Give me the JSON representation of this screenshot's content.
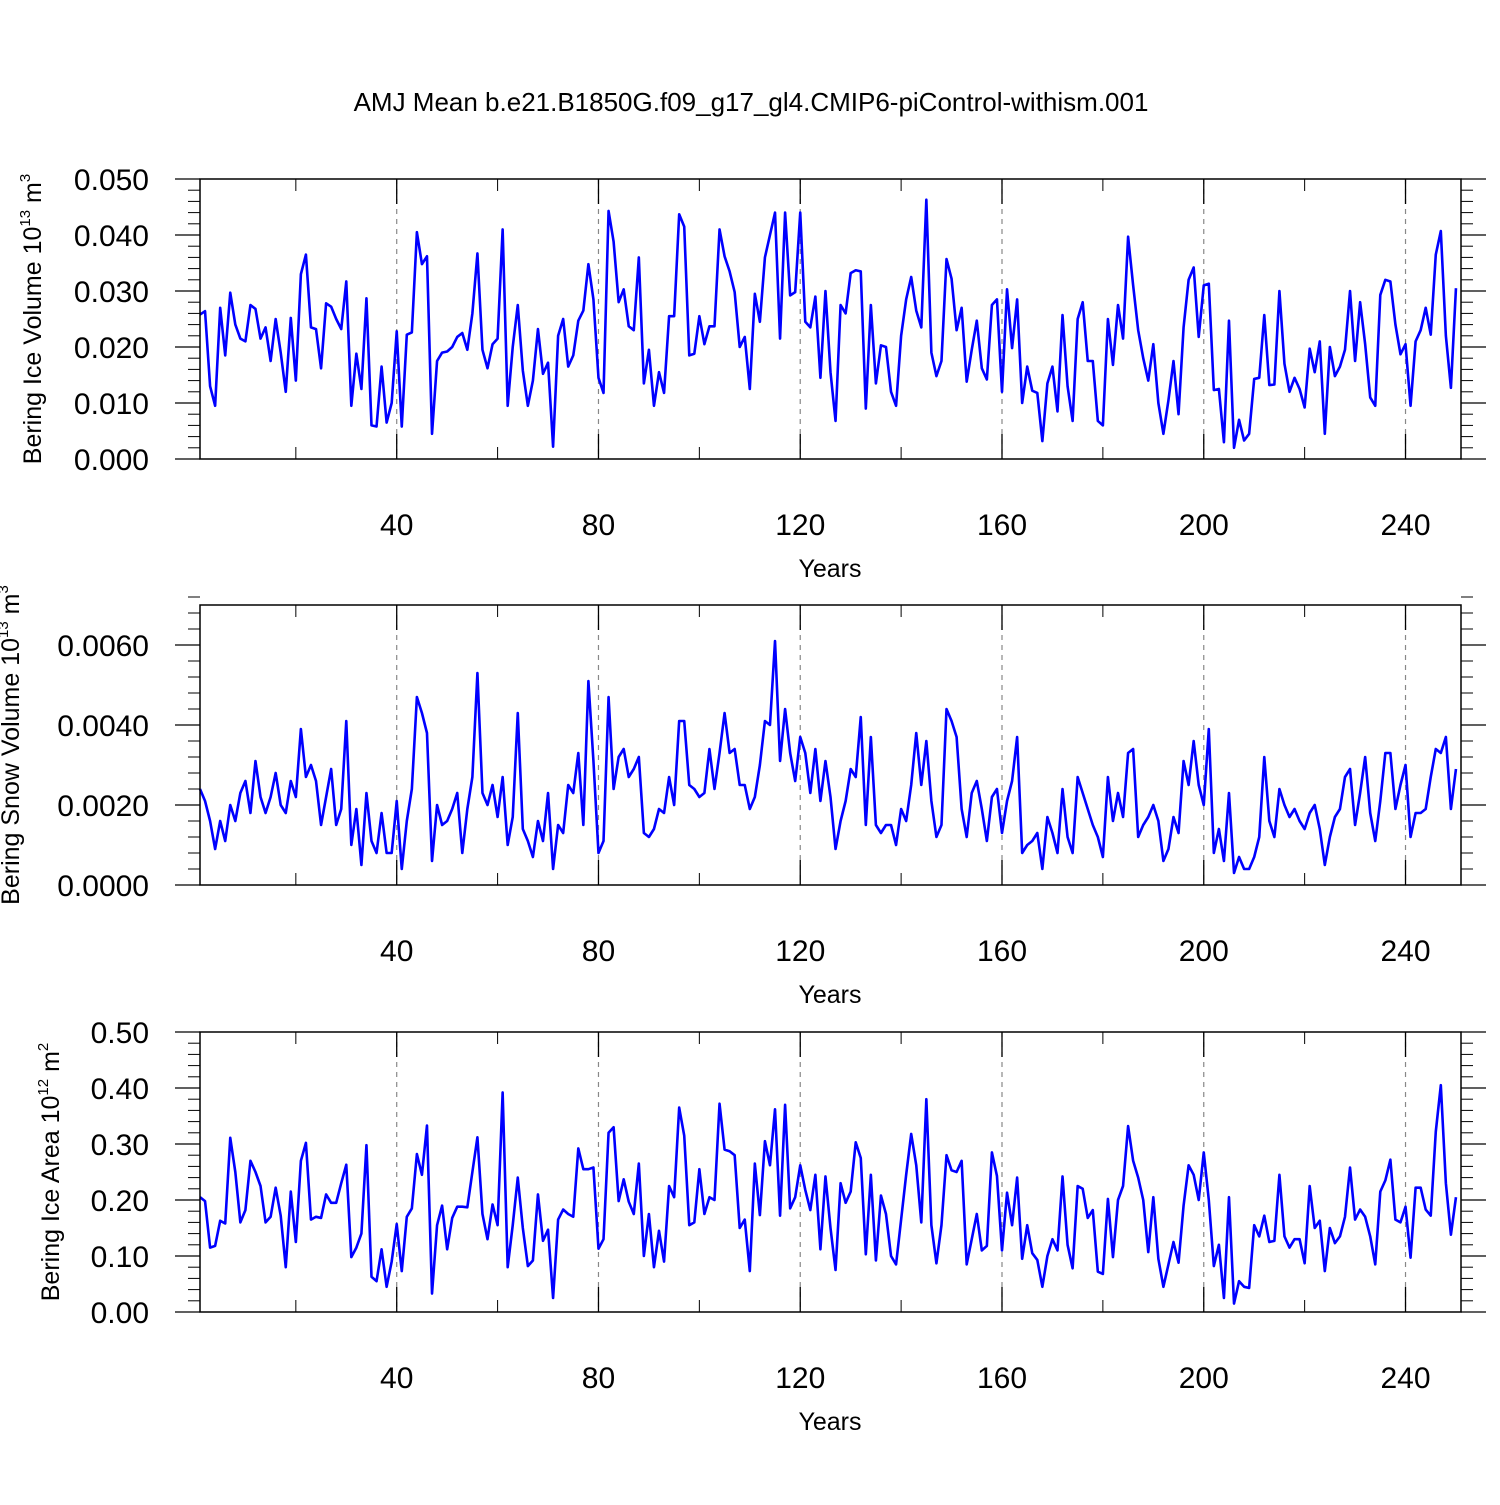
{
  "title": "AMJ Mean b.e21.B1850G.f09_g17_gl4.CMIP6-piControl-withism.001",
  "colors": {
    "line": "#0000ff",
    "axis": "#000000",
    "grid": "#888888"
  },
  "chart_data": [
    {
      "type": "line",
      "ylabel": {
        "text": "Bering Ice Volume 10",
        "sup": "13",
        "unit": " m",
        "unit_sup": "3"
      },
      "xlabel": "Years",
      "xlim": [
        1,
        251
      ],
      "ylim": [
        0,
        0.05
      ],
      "xticks": [
        40,
        80,
        120,
        160,
        200,
        240
      ],
      "xtick_labels": [
        "40",
        "80",
        "120",
        "160",
        "200",
        "240"
      ],
      "yticks": [
        0,
        0.01,
        0.02,
        0.03,
        0.04,
        0.05
      ],
      "ytick_labels": [
        "0.000",
        "0.010",
        "0.020",
        "0.030",
        "0.040",
        "0.050"
      ],
      "ystep_minor": 0.002,
      "grid": "vertical dashed at major x ticks",
      "series": [
        {
          "name": "Bering Ice Volume",
          "x_start": 1,
          "x_step": 1,
          "values": [
            0.0258,
            0.0264,
            0.013,
            0.0095,
            0.027,
            0.0185,
            0.0297,
            0.024,
            0.0215,
            0.021,
            0.0275,
            0.0268,
            0.0215,
            0.0235,
            0.0175,
            0.025,
            0.019,
            0.012,
            0.0252,
            0.014,
            0.033,
            0.0365,
            0.0235,
            0.0232,
            0.0162,
            0.0278,
            0.0272,
            0.025,
            0.0232,
            0.0317,
            0.0095,
            0.0188,
            0.0125,
            0.0287,
            0.006,
            0.0058,
            0.0165,
            0.0065,
            0.01,
            0.0228,
            0.0058,
            0.0222,
            0.0226,
            0.0405,
            0.0348,
            0.0362,
            0.0045,
            0.0175,
            0.019,
            0.0192,
            0.02,
            0.0218,
            0.0225,
            0.0195,
            0.026,
            0.0367,
            0.0195,
            0.0162,
            0.0205,
            0.0215,
            0.041,
            0.0095,
            0.02,
            0.0275,
            0.0158,
            0.0095,
            0.014,
            0.0232,
            0.0152,
            0.0172,
            0.0022,
            0.022,
            0.025,
            0.0165,
            0.0185,
            0.0247,
            0.0265,
            0.0348,
            0.0285,
            0.0145,
            0.0118,
            0.0443,
            0.0388,
            0.028,
            0.0303,
            0.0237,
            0.023,
            0.036,
            0.0135,
            0.0195,
            0.0095,
            0.0155,
            0.0118,
            0.0255,
            0.0255,
            0.0437,
            0.0415,
            0.0185,
            0.0188,
            0.0255,
            0.0205,
            0.0237,
            0.0237,
            0.041,
            0.0362,
            0.0335,
            0.0298,
            0.02,
            0.0218,
            0.0125,
            0.0295,
            0.0245,
            0.036,
            0.04,
            0.044,
            0.0215,
            0.044,
            0.0292,
            0.0298,
            0.044,
            0.0245,
            0.0235,
            0.029,
            0.0145,
            0.03,
            0.0155,
            0.0068,
            0.0275,
            0.026,
            0.0332,
            0.0337,
            0.0335,
            0.009,
            0.0275,
            0.0135,
            0.0203,
            0.02,
            0.012,
            0.0095,
            0.022,
            0.0285,
            0.0325,
            0.0265,
            0.0235,
            0.0463,
            0.019,
            0.0148,
            0.0175,
            0.0357,
            0.0322,
            0.023,
            0.027,
            0.0138,
            0.0195,
            0.0247,
            0.0162,
            0.0142,
            0.0275,
            0.0285,
            0.012,
            0.0303,
            0.0198,
            0.0285,
            0.01,
            0.0165,
            0.0122,
            0.0118,
            0.0032,
            0.0135,
            0.0165,
            0.0085,
            0.0257,
            0.013,
            0.0068,
            0.025,
            0.028,
            0.0175,
            0.0175,
            0.0068,
            0.006,
            0.025,
            0.0168,
            0.0275,
            0.0215,
            0.0397,
            0.031,
            0.023,
            0.018,
            0.014,
            0.0205,
            0.01,
            0.0045,
            0.0105,
            0.0175,
            0.008,
            0.0235,
            0.032,
            0.0342,
            0.0218,
            0.031,
            0.0313,
            0.0123,
            0.0125,
            0.003,
            0.0247,
            0.002,
            0.007,
            0.0033,
            0.0045,
            0.0143,
            0.0145,
            0.0257,
            0.0132,
            0.0133,
            0.03,
            0.017,
            0.012,
            0.0145,
            0.0125,
            0.0092,
            0.0197,
            0.0155,
            0.021,
            0.0045,
            0.02,
            0.0148,
            0.0165,
            0.0195,
            0.03,
            0.0175,
            0.028,
            0.0205,
            0.011,
            0.0095,
            0.0293,
            0.032,
            0.0317,
            0.024,
            0.0187,
            0.0205,
            0.0095,
            0.021,
            0.023,
            0.027,
            0.0222,
            0.0365,
            0.0407,
            0.022,
            0.0127,
            0.0305
          ]
        }
      ]
    },
    {
      "type": "line",
      "ylabel": {
        "text": "Bering Snow Volume 10",
        "sup": "13",
        "unit": " m",
        "unit_sup": "3"
      },
      "xlabel": "Years",
      "xlim": [
        1,
        251
      ],
      "ylim": [
        0,
        0.007
      ],
      "xticks": [
        40,
        80,
        120,
        160,
        200,
        240
      ],
      "xtick_labels": [
        "40",
        "80",
        "120",
        "160",
        "200",
        "240"
      ],
      "yticks": [
        0,
        0.002,
        0.004,
        0.006
      ],
      "ytick_labels": [
        "0.0000",
        "0.0020",
        "0.0040",
        "0.0060"
      ],
      "ystep_minor": 0.0004,
      "grid": "vertical dashed at major x ticks",
      "series": [
        {
          "name": "Bering Snow Volume",
          "x_start": 1,
          "x_step": 1,
          "values": [
            0.0024,
            0.0021,
            0.0016,
            0.0009,
            0.0016,
            0.0011,
            0.002,
            0.0016,
            0.0023,
            0.0026,
            0.0018,
            0.0031,
            0.0022,
            0.0018,
            0.0022,
            0.0028,
            0.002,
            0.0018,
            0.0026,
            0.0022,
            0.0039,
            0.0027,
            0.003,
            0.0026,
            0.0015,
            0.0022,
            0.0029,
            0.0015,
            0.0019,
            0.0041,
            0.001,
            0.0019,
            0.0005,
            0.0023,
            0.0011,
            0.0008,
            0.0018,
            0.0008,
            0.0008,
            0.0021,
            0.0004,
            0.0016,
            0.0024,
            0.0047,
            0.0043,
            0.0038,
            0.0006,
            0.002,
            0.0015,
            0.0016,
            0.0019,
            0.0023,
            0.0008,
            0.0019,
            0.0027,
            0.0053,
            0.0023,
            0.002,
            0.0025,
            0.0017,
            0.0027,
            0.001,
            0.0017,
            0.0043,
            0.0014,
            0.0011,
            0.0007,
            0.0016,
            0.0011,
            0.0023,
            0.0004,
            0.0015,
            0.0013,
            0.0025,
            0.0023,
            0.0033,
            0.0015,
            0.0051,
            0.0031,
            0.0008,
            0.0011,
            0.0047,
            0.0024,
            0.0032,
            0.0034,
            0.0027,
            0.0029,
            0.0032,
            0.0013,
            0.0012,
            0.0014,
            0.0019,
            0.0018,
            0.0027,
            0.002,
            0.0041,
            0.0041,
            0.0025,
            0.0024,
            0.0022,
            0.0023,
            0.0034,
            0.0024,
            0.0033,
            0.0043,
            0.0033,
            0.0034,
            0.0025,
            0.0025,
            0.0019,
            0.0022,
            0.003,
            0.0041,
            0.004,
            0.0061,
            0.0031,
            0.0044,
            0.0033,
            0.0026,
            0.0037,
            0.0033,
            0.0023,
            0.0034,
            0.0021,
            0.0031,
            0.0022,
            0.0009,
            0.0016,
            0.0021,
            0.0029,
            0.0027,
            0.0042,
            0.0015,
            0.0037,
            0.0015,
            0.0013,
            0.0015,
            0.0015,
            0.001,
            0.0019,
            0.0016,
            0.0025,
            0.0038,
            0.0025,
            0.0036,
            0.0021,
            0.0012,
            0.0015,
            0.0044,
            0.0041,
            0.0037,
            0.0019,
            0.0012,
            0.0023,
            0.0026,
            0.0019,
            0.0011,
            0.0022,
            0.0024,
            0.0013,
            0.0021,
            0.0026,
            0.0037,
            0.0008,
            0.001,
            0.0011,
            0.0013,
            0.0004,
            0.0017,
            0.0013,
            0.0008,
            0.0024,
            0.0012,
            0.0008,
            0.0027,
            0.0023,
            0.0019,
            0.0015,
            0.0012,
            0.0007,
            0.0027,
            0.0016,
            0.0023,
            0.0017,
            0.0033,
            0.0034,
            0.0012,
            0.0015,
            0.0017,
            0.002,
            0.0016,
            0.0006,
            0.0009,
            0.0017,
            0.0013,
            0.0031,
            0.0025,
            0.0036,
            0.0025,
            0.002,
            0.0039,
            0.0008,
            0.0014,
            0.0006,
            0.0023,
            0.0003,
            0.0007,
            0.0004,
            0.0004,
            0.0007,
            0.0012,
            0.0032,
            0.0016,
            0.0012,
            0.0024,
            0.002,
            0.0017,
            0.0019,
            0.0016,
            0.0014,
            0.0018,
            0.002,
            0.0014,
            0.0005,
            0.0012,
            0.0017,
            0.0019,
            0.0027,
            0.0029,
            0.0015,
            0.0023,
            0.0032,
            0.0018,
            0.0011,
            0.0021,
            0.0033,
            0.0033,
            0.0019,
            0.0025,
            0.003,
            0.0012,
            0.0018,
            0.0018,
            0.0019,
            0.0027,
            0.0034,
            0.0033,
            0.0037,
            0.0019,
            0.0029
          ]
        }
      ]
    },
    {
      "type": "line",
      "ylabel": {
        "text": "Bering Ice Area 10",
        "sup": "12",
        "unit": " m",
        "unit_sup": "2"
      },
      "xlabel": "Years",
      "xlim": [
        1,
        251
      ],
      "ylim": [
        0,
        0.5
      ],
      "xticks": [
        40,
        80,
        120,
        160,
        200,
        240
      ],
      "xtick_labels": [
        "40",
        "80",
        "120",
        "160",
        "200",
        "240"
      ],
      "yticks": [
        0,
        0.1,
        0.2,
        0.3,
        0.4,
        0.5
      ],
      "ytick_labels": [
        "0.00",
        "0.10",
        "0.20",
        "0.30",
        "0.40",
        "0.50"
      ],
      "ystep_minor": 0.02,
      "grid": "vertical dashed at major x ticks",
      "series": [
        {
          "name": "Bering Ice Area",
          "x_start": 1,
          "x_step": 1,
          "values": [
            0.205,
            0.198,
            0.115,
            0.118,
            0.163,
            0.158,
            0.311,
            0.25,
            0.16,
            0.182,
            0.27,
            0.25,
            0.225,
            0.16,
            0.17,
            0.222,
            0.172,
            0.08,
            0.215,
            0.125,
            0.27,
            0.302,
            0.165,
            0.17,
            0.168,
            0.21,
            0.195,
            0.195,
            0.23,
            0.263,
            0.098,
            0.115,
            0.14,
            0.298,
            0.063,
            0.055,
            0.112,
            0.045,
            0.09,
            0.157,
            0.073,
            0.17,
            0.185,
            0.282,
            0.245,
            0.333,
            0.033,
            0.155,
            0.19,
            0.112,
            0.168,
            0.188,
            0.188,
            0.187,
            0.25,
            0.312,
            0.175,
            0.13,
            0.192,
            0.155,
            0.392,
            0.08,
            0.155,
            0.24,
            0.15,
            0.082,
            0.092,
            0.21,
            0.127,
            0.147,
            0.025,
            0.165,
            0.183,
            0.175,
            0.17,
            0.292,
            0.255,
            0.255,
            0.258,
            0.113,
            0.13,
            0.32,
            0.33,
            0.198,
            0.237,
            0.197,
            0.175,
            0.265,
            0.1,
            0.175,
            0.08,
            0.145,
            0.09,
            0.225,
            0.205,
            0.365,
            0.315,
            0.155,
            0.16,
            0.255,
            0.175,
            0.205,
            0.2,
            0.372,
            0.29,
            0.287,
            0.28,
            0.15,
            0.165,
            0.073,
            0.265,
            0.173,
            0.305,
            0.262,
            0.362,
            0.172,
            0.37,
            0.185,
            0.205,
            0.262,
            0.218,
            0.182,
            0.245,
            0.112,
            0.242,
            0.15,
            0.075,
            0.23,
            0.195,
            0.215,
            0.303,
            0.275,
            0.103,
            0.245,
            0.092,
            0.208,
            0.175,
            0.1,
            0.085,
            0.165,
            0.245,
            0.318,
            0.262,
            0.16,
            0.38,
            0.155,
            0.087,
            0.155,
            0.28,
            0.253,
            0.25,
            0.27,
            0.085,
            0.13,
            0.175,
            0.11,
            0.118,
            0.285,
            0.243,
            0.11,
            0.213,
            0.155,
            0.24,
            0.095,
            0.155,
            0.105,
            0.093,
            0.045,
            0.1,
            0.13,
            0.11,
            0.242,
            0.12,
            0.078,
            0.225,
            0.22,
            0.168,
            0.182,
            0.072,
            0.068,
            0.202,
            0.098,
            0.2,
            0.225,
            0.332,
            0.27,
            0.24,
            0.2,
            0.107,
            0.205,
            0.095,
            0.045,
            0.085,
            0.125,
            0.088,
            0.19,
            0.262,
            0.245,
            0.2,
            0.285,
            0.2,
            0.082,
            0.12,
            0.025,
            0.205,
            0.015,
            0.055,
            0.045,
            0.043,
            0.155,
            0.135,
            0.172,
            0.125,
            0.127,
            0.245,
            0.135,
            0.115,
            0.13,
            0.13,
            0.087,
            0.225,
            0.15,
            0.163,
            0.073,
            0.15,
            0.123,
            0.135,
            0.17,
            0.258,
            0.165,
            0.183,
            0.17,
            0.135,
            0.085,
            0.215,
            0.235,
            0.272,
            0.165,
            0.16,
            0.188,
            0.097,
            0.222,
            0.222,
            0.183,
            0.172,
            0.322,
            0.405,
            0.23,
            0.138,
            0.205
          ]
        }
      ]
    }
  ]
}
